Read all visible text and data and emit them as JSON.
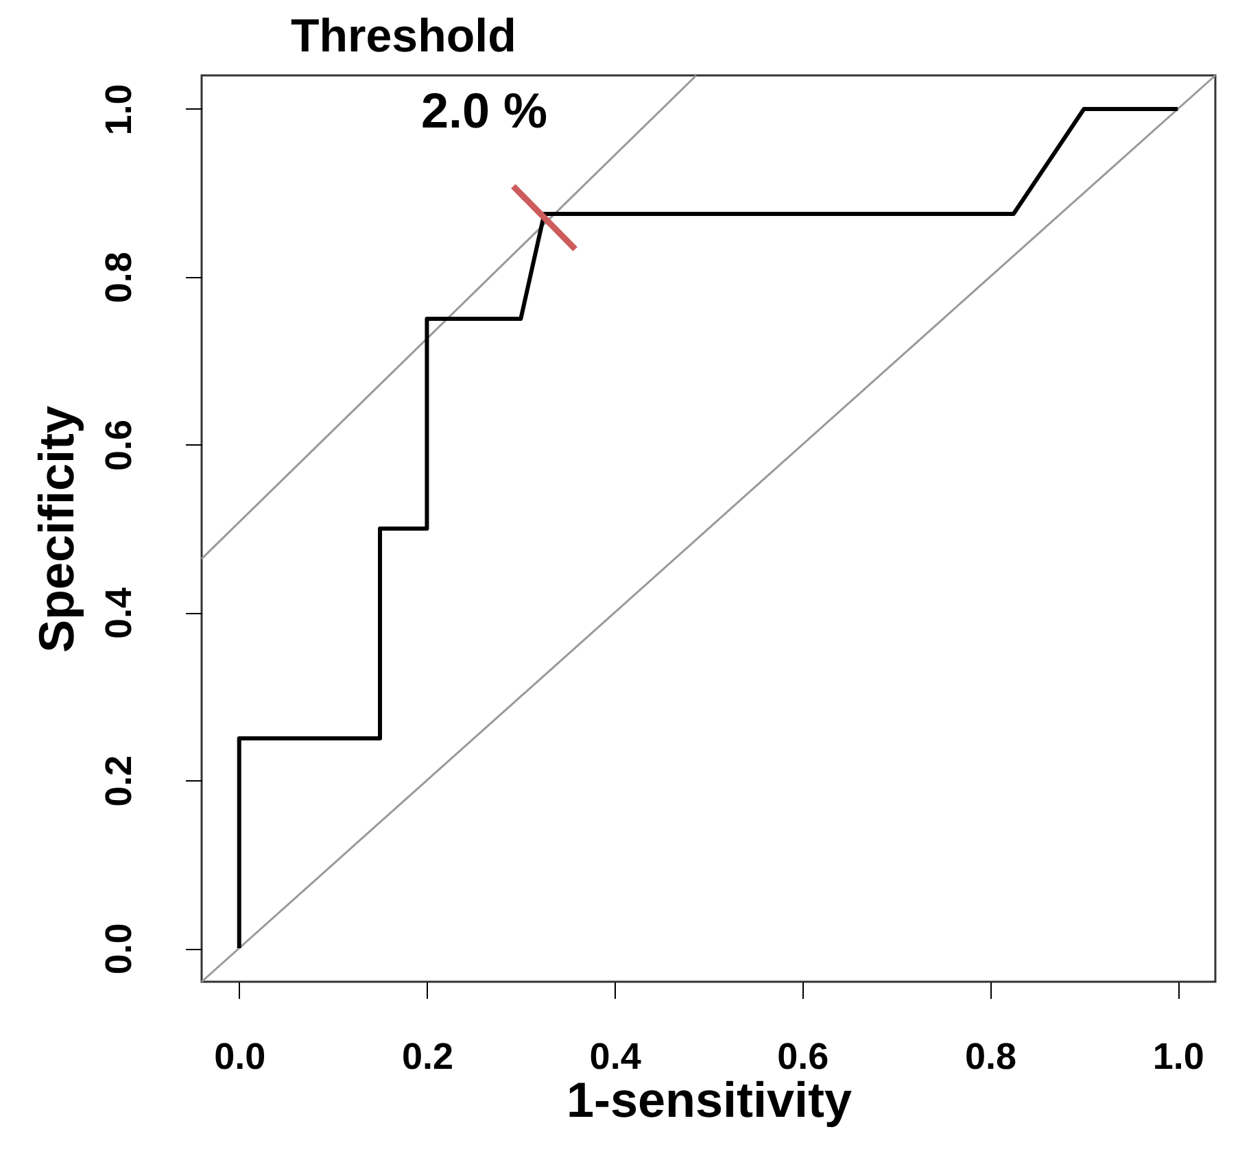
{
  "chart_data": {
    "type": "line",
    "title": "Threshold",
    "xlabel": "1-sensitivity",
    "ylabel": "Specificity",
    "annotations": [
      "2.0 %"
    ],
    "xlim": [
      -0.04,
      1.04
    ],
    "ylim": [
      -0.04,
      1.04
    ],
    "xticks": [
      {
        "value": 0,
        "label": "0.0"
      },
      0.2,
      0.4,
      0.6,
      0.8,
      {
        "value": 1,
        "label": "1.0"
      }
    ],
    "yticks": [
      {
        "value": 0,
        "label": "0.0"
      },
      0.2,
      0.4,
      0.6,
      0.8,
      {
        "value": 1,
        "label": "1.0"
      }
    ],
    "grid": false,
    "marker": "none",
    "line_style": "solid",
    "series": [
      {
        "color": "#999999",
        "x": [
          -0.04,
          1.04
        ],
        "values": [
          -0.04,
          1.04
        ]
      },
      {
        "color": "#999999",
        "x": [
          -0.04,
          0.487
        ],
        "values": [
          0.464,
          1.04
        ]
      },
      {
        "color": "#000000",
        "x": [
          0,
          0,
          0.15,
          0.15,
          0.2,
          0.2,
          0.3,
          0.325,
          0.825,
          0.9,
          1.0
        ],
        "values": [
          0,
          0.25,
          0.25,
          0.5,
          0.5,
          0.75,
          0.75,
          0.875,
          0.875,
          1.0,
          1.0
        ]
      },
      {
        "color": "#cd5c5c",
        "x": [
          0.292,
          0.358
        ],
        "values": [
          0.908,
          0.833
        ]
      }
    ]
  }
}
